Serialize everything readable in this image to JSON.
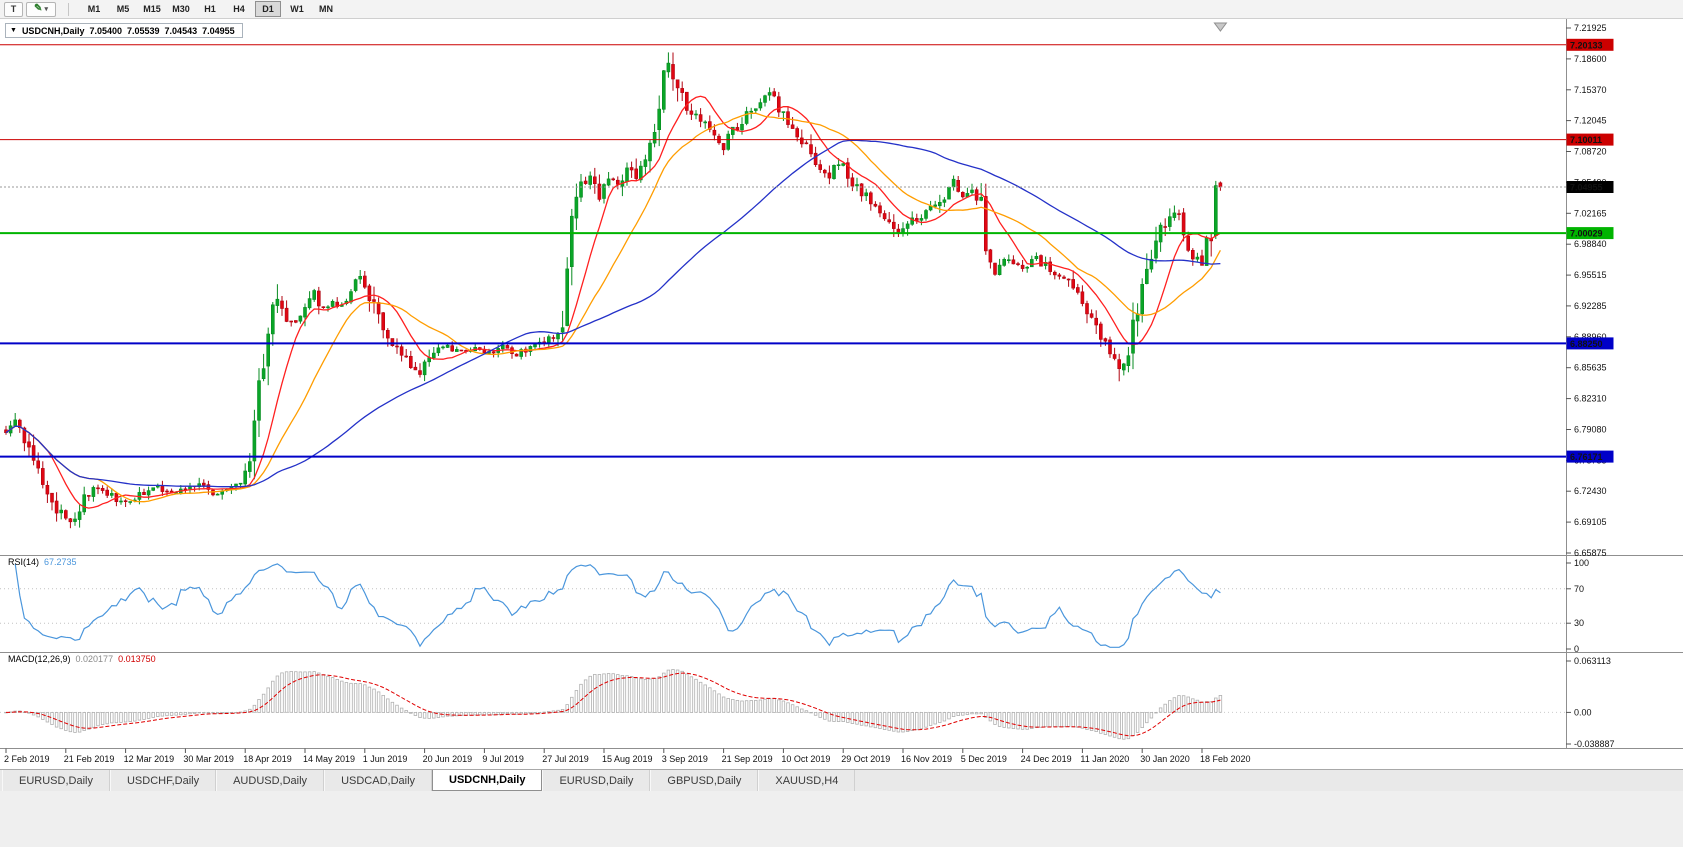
{
  "toolbar": {
    "text_tool_label": "T",
    "timeframes": [
      "M1",
      "M5",
      "M15",
      "M30",
      "H1",
      "H4",
      "D1",
      "W1",
      "MN"
    ],
    "active_timeframe": "D1"
  },
  "chart": {
    "ohlc": {
      "symbol": "USDCNH,Daily",
      "open": "7.05400",
      "high": "7.05539",
      "low": "7.04543",
      "close": "7.04955"
    }
  },
  "chart_data": {
    "type": "candlestick",
    "symbol": "USDCNH",
    "timeframe": "Daily",
    "bar_count": 265,
    "bars_per_label": 13,
    "current_bar": {
      "open": 7.054,
      "high": 7.05539,
      "low": 7.04543,
      "close": 7.04955
    },
    "y_axis_ticks": [
      "7.21925",
      "7.18600",
      "7.15370",
      "7.12045",
      "7.08720",
      "7.05490",
      "7.02165",
      "6.98840",
      "6.95515",
      "6.92285",
      "6.88960",
      "6.85635",
      "6.82310",
      "6.79080",
      "6.75755",
      "6.72430",
      "6.69105",
      "6.65875"
    ],
    "y_axis_range": [
      6.65875,
      7.21925
    ],
    "x_axis_labels": [
      "2 Feb 2019",
      "21 Feb 2019",
      "12 Mar 2019",
      "30 Mar 2019",
      "18 Apr 2019",
      "14 May 2019",
      "1 Jun 2019",
      "20 Jun 2019",
      "9 Jul 2019",
      "27 Jul 2019",
      "15 Aug 2019",
      "3 Sep 2019",
      "21 Sep 2019",
      "10 Oct 2019",
      "29 Oct 2019",
      "16 Nov 2019",
      "5 Dec 2019",
      "24 Dec 2019",
      "11 Jan 2020",
      "30 Jan 2020",
      "18 Feb 2020"
    ],
    "horizontal_levels": [
      {
        "label": "7.20133",
        "price": 7.20133,
        "color": "#cc0000",
        "thickness": 1
      },
      {
        "label": "7.10011",
        "price": 7.10011,
        "color": "#cc0000",
        "thickness": 1
      },
      {
        "label": "7.00029",
        "price": 7.00029,
        "color": "#00b400",
        "thickness": 2
      },
      {
        "label": "6.88250",
        "price": 6.8825,
        "color": "#0000c8",
        "thickness": 2
      },
      {
        "label": "6.76171",
        "price": 6.76171,
        "color": "#0000c8",
        "thickness": 2
      }
    ],
    "current_price_label": {
      "label": "7.04955",
      "price": 7.04955,
      "bg": "#000000"
    },
    "candle_colors": {
      "bull": "#0aa528",
      "bear": "#e00713",
      "bull_border": "#078b20",
      "bear_border": "#b00410"
    },
    "moving_averages": [
      {
        "period": 10,
        "method": "sma",
        "color": "#ff2020"
      },
      {
        "period": 21,
        "method": "sma",
        "color": "#ff9d00"
      },
      {
        "period": 60,
        "method": "sma",
        "color": "#2431c8"
      }
    ],
    "close_path_anchors": [
      [
        0,
        6.785
      ],
      [
        2,
        6.798
      ],
      [
        5,
        6.772
      ],
      [
        8,
        6.735
      ],
      [
        11,
        6.706
      ],
      [
        14,
        6.693
      ],
      [
        17,
        6.716
      ],
      [
        20,
        6.732
      ],
      [
        23,
        6.72
      ],
      [
        26,
        6.711
      ],
      [
        29,
        6.722
      ],
      [
        33,
        6.73
      ],
      [
        36,
        6.721
      ],
      [
        39,
        6.727
      ],
      [
        42,
        6.734
      ],
      [
        45,
        6.719
      ],
      [
        48,
        6.727
      ],
      [
        51,
        6.733
      ],
      [
        53,
        6.748
      ],
      [
        55,
        6.83
      ],
      [
        57,
        6.902
      ],
      [
        59,
        6.938
      ],
      [
        61,
        6.91
      ],
      [
        63,
        6.904
      ],
      [
        65,
        6.921
      ],
      [
        67,
        6.935
      ],
      [
        69,
        6.92
      ],
      [
        71,
        6.929
      ],
      [
        73,
        6.919
      ],
      [
        75,
        6.937
      ],
      [
        77,
        6.953
      ],
      [
        79,
        6.934
      ],
      [
        81,
        6.909
      ],
      [
        84,
        6.884
      ],
      [
        87,
        6.865
      ],
      [
        90,
        6.852
      ],
      [
        93,
        6.873
      ],
      [
        96,
        6.879
      ],
      [
        99,
        6.872
      ],
      [
        102,
        6.878
      ],
      [
        105,
        6.872
      ],
      [
        108,
        6.879
      ],
      [
        111,
        6.871
      ],
      [
        114,
        6.878
      ],
      [
        117,
        6.885
      ],
      [
        119,
        6.891
      ],
      [
        121,
        6.902
      ],
      [
        123,
        7.022
      ],
      [
        125,
        7.051
      ],
      [
        127,
        7.059
      ],
      [
        129,
        7.041
      ],
      [
        131,
        7.059
      ],
      [
        133,
        7.051
      ],
      [
        135,
        7.076
      ],
      [
        137,
        7.061
      ],
      [
        139,
        7.083
      ],
      [
        141,
        7.112
      ],
      [
        143,
        7.179
      ],
      [
        144,
        7.189
      ],
      [
        146,
        7.159
      ],
      [
        148,
        7.137
      ],
      [
        151,
        7.121
      ],
      [
        154,
        7.106
      ],
      [
        156,
        7.091
      ],
      [
        158,
        7.109
      ],
      [
        161,
        7.126
      ],
      [
        164,
        7.143
      ],
      [
        166,
        7.149
      ],
      [
        168,
        7.134
      ],
      [
        170,
        7.121
      ],
      [
        173,
        7.101
      ],
      [
        176,
        7.071
      ],
      [
        179,
        7.061
      ],
      [
        181,
        7.079
      ],
      [
        183,
        7.061
      ],
      [
        186,
        7.044
      ],
      [
        189,
        7.027
      ],
      [
        192,
        7.011
      ],
      [
        194,
        6.997
      ],
      [
        197,
        7.013
      ],
      [
        200,
        7.023
      ],
      [
        203,
        7.034
      ],
      [
        206,
        7.056
      ],
      [
        208,
        7.039
      ],
      [
        210,
        7.047
      ],
      [
        212,
        7.031
      ],
      [
        213,
        6.976
      ],
      [
        215,
        6.961
      ],
      [
        218,
        6.973
      ],
      [
        221,
        6.964
      ],
      [
        224,
        6.973
      ],
      [
        227,
        6.961
      ],
      [
        230,
        6.954
      ],
      [
        232,
        6.941
      ],
      [
        234,
        6.924
      ],
      [
        236,
        6.907
      ],
      [
        238,
        6.891
      ],
      [
        240,
        6.871
      ],
      [
        242,
        6.851
      ],
      [
        244,
        6.879
      ],
      [
        246,
        6.923
      ],
      [
        248,
        6.959
      ],
      [
        250,
        6.991
      ],
      [
        252,
        7.013
      ],
      [
        254,
        7.027
      ],
      [
        256,
        7.004
      ],
      [
        258,
        6.977
      ],
      [
        260,
        6.971
      ],
      [
        261,
        6.989
      ],
      [
        262,
        7.003
      ],
      [
        263,
        7.031
      ],
      [
        264,
        7.0496
      ]
    ],
    "indicators": {
      "rsi": {
        "name": "RSI(14)",
        "value": "67.2735",
        "period": 14,
        "color": "#4a96dc",
        "levels": [
          70,
          30
        ],
        "scale_labels": [
          "100",
          "70",
          "30",
          "0"
        ],
        "scale_values": [
          100,
          70,
          30,
          0
        ]
      },
      "macd": {
        "name": "MACD(12,26,9)",
        "main_value": "0.020177",
        "signal_value": "0.013750",
        "fast": 12,
        "slow": 26,
        "signal": 9,
        "histogram_color": "#b0b0b0",
        "signal_color": "#e00000",
        "scale_labels": [
          "0.063113",
          "0.00",
          "-0.038887"
        ],
        "scale_values": [
          0.063113,
          0,
          -0.038887
        ]
      }
    }
  },
  "tabs": {
    "active": "USDCNH,Daily",
    "items": [
      "EURUSD,Daily",
      "USDCHF,Daily",
      "AUDUSD,Daily",
      "USDCAD,Daily",
      "USDCNH,Daily",
      "EURUSD,Daily",
      "GBPUSD,Daily",
      "XAUUSD,H4"
    ]
  }
}
